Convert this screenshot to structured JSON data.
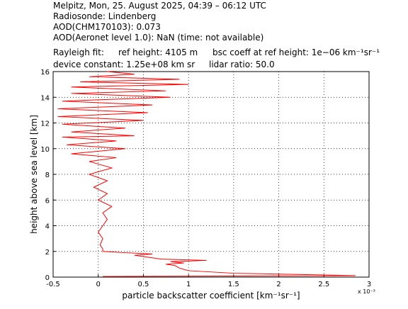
{
  "chart_data": {
    "type": "line",
    "header": [
      "Melpitz, Mon, 25. August 2025, 04:39 – 06:12 UTC",
      "Radiosonde: Lindenberg",
      "AOD(CHM170103): 0.073",
      "AOD(Aeronet level 1.0): NaN   (time: not available)"
    ],
    "rayleigh": [
      "Rayleigh fit:",
      "ref height: 4105 m",
      "bsc coeff at ref height: 1e−06 km⁻¹sr⁻¹"
    ],
    "device": [
      "device constant: 1.25e+08 km sr",
      "lidar ratio: 50.0"
    ],
    "xlabel": "particle backscatter coefficient [km⁻¹sr⁻¹]",
    "ylabel": "height above sea level [km]",
    "x_exponent": "x 10⁻³",
    "xlim": [
      -0.5,
      3
    ],
    "xticks": [
      -0.5,
      0,
      0.5,
      1,
      1.5,
      2,
      2.5,
      3
    ],
    "ylim": [
      0,
      16
    ],
    "yticks": [
      0,
      2,
      4,
      6,
      8,
      10,
      12,
      14,
      16
    ],
    "grid": true,
    "heights": [
      0.05,
      0.12,
      0.3,
      0.5,
      0.7,
      0.9,
      1.0,
      1.1,
      1.2,
      1.3,
      1.4,
      1.6,
      1.7,
      1.8,
      1.9,
      2.0,
      2.2,
      2.5,
      3.0,
      3.5,
      4.0,
      4.5,
      5.0,
      5.5,
      6.0,
      6.5,
      7.0,
      7.5,
      8.0,
      8.5,
      9.0,
      9.3,
      9.6,
      10.0,
      10.3,
      10.6,
      10.9,
      11.0,
      11.3,
      11.6,
      11.9,
      12.2,
      12.5,
      12.8,
      13.1,
      13.4,
      13.7,
      14.0,
      14.3,
      14.5,
      14.8,
      15.0,
      15.2,
      15.4,
      15.6,
      15.8,
      16.0
    ],
    "series": [
      {
        "color": "#ff0000",
        "values": [
          0.05,
          2.85,
          1.5,
          1.0,
          0.9,
          0.85,
          0.75,
          0.95,
          0.8,
          1.2,
          0.7,
          0.5,
          0.4,
          0.6,
          0.3,
          0.05,
          0.05,
          0.02,
          0.05,
          0.0,
          0.05,
          0.1,
          0.05,
          0.15,
          0.0,
          0.1,
          -0.05,
          0.1,
          -0.1,
          0.15,
          -0.1,
          0.2,
          -0.3,
          0.3,
          -0.35,
          0.2,
          -0.4,
          0.4,
          -0.3,
          0.3,
          -0.4,
          0.5,
          -0.45,
          0.55,
          -0.45,
          0.6,
          -0.4,
          0.8,
          -0.3,
          0.75,
          -0.3,
          1.0,
          -0.2,
          0.9,
          -0.1,
          0.4,
          0.1
        ]
      }
    ]
  }
}
